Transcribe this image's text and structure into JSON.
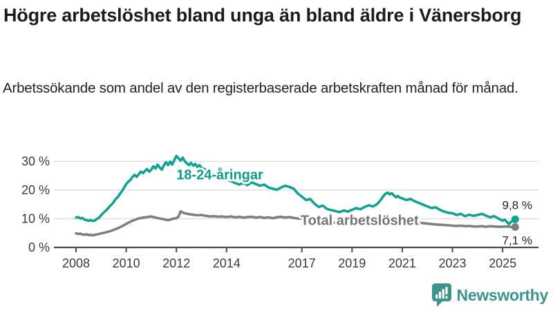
{
  "chart_data": {
    "type": "line",
    "title": "Högre arbetslöshet bland unga än bland äldre i Vänersborg",
    "subtitle": "Arbetssökande som andel av den registerbaserade arbetskraften månad för månad.",
    "xlabel": "",
    "ylabel": "",
    "xlim": [
      2007.3,
      2026.4
    ],
    "ylim": [
      0,
      33.7
    ],
    "grid": "horizontal-light",
    "legend_position": "inline-labels",
    "x_ticks": [
      2008,
      2010,
      2012,
      2014,
      2017,
      2019,
      2021,
      2023,
      2025
    ],
    "y_ticks": [
      0,
      10,
      20,
      30
    ],
    "y_tick_labels": [
      "0 %",
      "10 %",
      "20 %",
      "30 %"
    ],
    "series": [
      {
        "key": "young",
        "name": "18-24-åringar",
        "color": "#12a192",
        "label_color": "#0f9a8b",
        "label_anchor": {
          "year": 2012.0,
          "value": 25.4
        },
        "end_value": 9.8,
        "end_label": "9,8 %",
        "end_label_side": "above",
        "points": [
          [
            2008.0,
            10.4
          ],
          [
            2008.08,
            10.6
          ],
          [
            2008.17,
            10.1
          ],
          [
            2008.25,
            10.3
          ],
          [
            2008.33,
            9.7
          ],
          [
            2008.42,
            9.5
          ],
          [
            2008.5,
            9.3
          ],
          [
            2008.58,
            9.5
          ],
          [
            2008.67,
            9.2
          ],
          [
            2008.75,
            9.4
          ],
          [
            2008.83,
            9.9
          ],
          [
            2008.92,
            10.4
          ],
          [
            2009.0,
            11.2
          ],
          [
            2009.08,
            12.0
          ],
          [
            2009.17,
            12.7
          ],
          [
            2009.25,
            13.4
          ],
          [
            2009.33,
            14.2
          ],
          [
            2009.42,
            15.0
          ],
          [
            2009.5,
            15.8
          ],
          [
            2009.58,
            16.9
          ],
          [
            2009.67,
            17.6
          ],
          [
            2009.75,
            18.7
          ],
          [
            2009.83,
            19.6
          ],
          [
            2009.92,
            20.9
          ],
          [
            2010.0,
            22.1
          ],
          [
            2010.08,
            22.9
          ],
          [
            2010.17,
            23.6
          ],
          [
            2010.25,
            24.6
          ],
          [
            2010.33,
            25.3
          ],
          [
            2010.42,
            24.6
          ],
          [
            2010.5,
            25.6
          ],
          [
            2010.58,
            26.4
          ],
          [
            2010.67,
            25.9
          ],
          [
            2010.75,
            26.7
          ],
          [
            2010.83,
            27.3
          ],
          [
            2010.92,
            26.4
          ],
          [
            2011.0,
            27.1
          ],
          [
            2011.08,
            28.3
          ],
          [
            2011.17,
            27.5
          ],
          [
            2011.25,
            28.9
          ],
          [
            2011.33,
            27.9
          ],
          [
            2011.42,
            27.1
          ],
          [
            2011.5,
            28.6
          ],
          [
            2011.58,
            29.7
          ],
          [
            2011.67,
            28.7
          ],
          [
            2011.75,
            29.9
          ],
          [
            2011.83,
            28.9
          ],
          [
            2011.92,
            30.5
          ],
          [
            2012.0,
            31.9
          ],
          [
            2012.08,
            31.1
          ],
          [
            2012.17,
            30.3
          ],
          [
            2012.25,
            31.3
          ],
          [
            2012.33,
            30.1
          ],
          [
            2012.42,
            29.3
          ],
          [
            2012.5,
            28.7
          ],
          [
            2012.58,
            29.5
          ],
          [
            2012.67,
            28.5
          ],
          [
            2012.75,
            29.1
          ],
          [
            2012.83,
            28.1
          ],
          [
            2012.92,
            28.7
          ],
          [
            2013.0,
            27.7
          ],
          [
            2013.17,
            27.1
          ],
          [
            2013.33,
            26.3
          ],
          [
            2013.5,
            25.5
          ],
          [
            2013.67,
            24.9
          ],
          [
            2013.83,
            24.3
          ],
          [
            2014.0,
            23.7
          ],
          [
            2014.17,
            23.1
          ],
          [
            2014.33,
            22.5
          ],
          [
            2014.5,
            21.9
          ],
          [
            2014.67,
            22.5
          ],
          [
            2014.83,
            21.7
          ],
          [
            2015.0,
            22.7
          ],
          [
            2015.17,
            22.1
          ],
          [
            2015.33,
            21.5
          ],
          [
            2015.5,
            21.9
          ],
          [
            2015.67,
            20.9
          ],
          [
            2015.83,
            20.5
          ],
          [
            2016.0,
            20.1
          ],
          [
            2016.17,
            20.9
          ],
          [
            2016.33,
            21.5
          ],
          [
            2016.5,
            21.1
          ],
          [
            2016.67,
            20.5
          ],
          [
            2016.83,
            18.9
          ],
          [
            2017.0,
            17.7
          ],
          [
            2017.17,
            16.5
          ],
          [
            2017.33,
            16.9
          ],
          [
            2017.5,
            15.3
          ],
          [
            2017.67,
            14.1
          ],
          [
            2017.83,
            14.6
          ],
          [
            2018.0,
            13.4
          ],
          [
            2018.17,
            13.0
          ],
          [
            2018.33,
            12.7
          ],
          [
            2018.5,
            12.3
          ],
          [
            2018.67,
            12.9
          ],
          [
            2018.83,
            12.5
          ],
          [
            2019.0,
            13.1
          ],
          [
            2019.17,
            13.7
          ],
          [
            2019.33,
            13.3
          ],
          [
            2019.5,
            14.1
          ],
          [
            2019.67,
            14.7
          ],
          [
            2019.83,
            14.3
          ],
          [
            2020.0,
            15.1
          ],
          [
            2020.08,
            15.9
          ],
          [
            2020.17,
            16.9
          ],
          [
            2020.25,
            17.9
          ],
          [
            2020.33,
            18.7
          ],
          [
            2020.42,
            19.1
          ],
          [
            2020.5,
            18.5
          ],
          [
            2020.58,
            18.9
          ],
          [
            2020.67,
            18.1
          ],
          [
            2020.75,
            17.5
          ],
          [
            2020.83,
            17.9
          ],
          [
            2020.92,
            17.3
          ],
          [
            2021.0,
            17.1
          ],
          [
            2021.17,
            16.5
          ],
          [
            2021.33,
            16.9
          ],
          [
            2021.5,
            16.1
          ],
          [
            2021.67,
            15.5
          ],
          [
            2021.83,
            14.9
          ],
          [
            2022.0,
            14.3
          ],
          [
            2022.17,
            13.7
          ],
          [
            2022.33,
            14.0
          ],
          [
            2022.5,
            13.1
          ],
          [
            2022.67,
            12.5
          ],
          [
            2022.83,
            12.1
          ],
          [
            2023.0,
            11.9
          ],
          [
            2023.17,
            11.3
          ],
          [
            2023.33,
            11.7
          ],
          [
            2023.5,
            10.9
          ],
          [
            2023.67,
            11.4
          ],
          [
            2023.83,
            11.0
          ],
          [
            2024.0,
            11.3
          ],
          [
            2024.17,
            11.7
          ],
          [
            2024.33,
            11.1
          ],
          [
            2024.5,
            10.5
          ],
          [
            2024.67,
            10.9
          ],
          [
            2024.83,
            10.1
          ],
          [
            2025.0,
            9.3
          ],
          [
            2025.08,
            9.7
          ],
          [
            2025.17,
            8.9
          ],
          [
            2025.25,
            8.1
          ],
          [
            2025.33,
            8.9
          ],
          [
            2025.42,
            9.3
          ],
          [
            2025.5,
            9.8
          ]
        ]
      },
      {
        "key": "total",
        "name": "Total arbetslöshet",
        "color": "#7f7f7f",
        "label_color": "#757575",
        "label_anchor": {
          "year": 2016.95,
          "value": 9.5
        },
        "end_value": 7.1,
        "end_label": "7,1 %",
        "end_label_side": "below",
        "points": [
          [
            2008.0,
            4.9
          ],
          [
            2008.08,
            4.7
          ],
          [
            2008.17,
            4.8
          ],
          [
            2008.25,
            4.5
          ],
          [
            2008.33,
            4.4
          ],
          [
            2008.42,
            4.6
          ],
          [
            2008.5,
            4.3
          ],
          [
            2008.58,
            4.4
          ],
          [
            2008.67,
            4.2
          ],
          [
            2008.75,
            4.4
          ],
          [
            2008.83,
            4.5
          ],
          [
            2008.92,
            4.7
          ],
          [
            2009.0,
            4.9
          ],
          [
            2009.17,
            5.2
          ],
          [
            2009.33,
            5.6
          ],
          [
            2009.5,
            6.1
          ],
          [
            2009.67,
            6.7
          ],
          [
            2009.83,
            7.4
          ],
          [
            2010.0,
            8.2
          ],
          [
            2010.17,
            9.0
          ],
          [
            2010.33,
            9.6
          ],
          [
            2010.5,
            10.1
          ],
          [
            2010.67,
            10.4
          ],
          [
            2010.83,
            10.6
          ],
          [
            2011.0,
            10.8
          ],
          [
            2011.17,
            10.4
          ],
          [
            2011.33,
            10.1
          ],
          [
            2011.5,
            9.8
          ],
          [
            2011.67,
            9.5
          ],
          [
            2011.83,
            9.9
          ],
          [
            2012.0,
            10.2
          ],
          [
            2012.08,
            10.7
          ],
          [
            2012.17,
            12.6
          ],
          [
            2012.25,
            12.2
          ],
          [
            2012.33,
            11.9
          ],
          [
            2012.5,
            11.6
          ],
          [
            2012.67,
            11.4
          ],
          [
            2012.83,
            11.2
          ],
          [
            2013.0,
            11.3
          ],
          [
            2013.17,
            11.0
          ],
          [
            2013.33,
            10.8
          ],
          [
            2013.5,
            10.9
          ],
          [
            2013.67,
            10.7
          ],
          [
            2013.83,
            10.8
          ],
          [
            2014.0,
            10.6
          ],
          [
            2014.17,
            10.8
          ],
          [
            2014.33,
            10.5
          ],
          [
            2014.5,
            10.7
          ],
          [
            2014.67,
            10.4
          ],
          [
            2014.83,
            10.6
          ],
          [
            2015.0,
            10.7
          ],
          [
            2015.17,
            10.4
          ],
          [
            2015.33,
            10.6
          ],
          [
            2015.5,
            10.3
          ],
          [
            2015.67,
            10.5
          ],
          [
            2015.83,
            10.2
          ],
          [
            2016.0,
            10.5
          ],
          [
            2016.17,
            10.7
          ],
          [
            2016.33,
            10.4
          ],
          [
            2016.5,
            10.6
          ],
          [
            2016.67,
            10.3
          ],
          [
            2016.83,
            10.1
          ],
          [
            2017.0,
            10.0
          ],
          [
            2017.25,
            9.8
          ],
          [
            2017.5,
            9.5
          ],
          [
            2017.75,
            9.2
          ],
          [
            2018.0,
            8.9
          ],
          [
            2018.33,
            8.6
          ],
          [
            2018.67,
            8.4
          ],
          [
            2019.0,
            8.3
          ],
          [
            2019.33,
            8.2
          ],
          [
            2019.67,
            8.4
          ],
          [
            2020.0,
            8.6
          ],
          [
            2020.25,
            9.4
          ],
          [
            2020.5,
            9.7
          ],
          [
            2020.75,
            9.5
          ],
          [
            2021.0,
            9.3
          ],
          [
            2021.33,
            9.0
          ],
          [
            2021.67,
            8.6
          ],
          [
            2022.0,
            8.3
          ],
          [
            2022.33,
            8.0
          ],
          [
            2022.67,
            7.8
          ],
          [
            2023.0,
            7.6
          ],
          [
            2023.17,
            7.5
          ],
          [
            2023.33,
            7.6
          ],
          [
            2023.5,
            7.4
          ],
          [
            2023.67,
            7.5
          ],
          [
            2023.83,
            7.3
          ],
          [
            2024.0,
            7.3
          ],
          [
            2024.17,
            7.4
          ],
          [
            2024.33,
            7.2
          ],
          [
            2024.5,
            7.4
          ],
          [
            2024.67,
            7.3
          ],
          [
            2024.83,
            7.2
          ],
          [
            2025.0,
            7.2
          ],
          [
            2025.17,
            7.3
          ],
          [
            2025.33,
            7.1
          ],
          [
            2025.42,
            7.2
          ],
          [
            2025.5,
            7.1
          ]
        ]
      }
    ]
  },
  "footer": {
    "brand": "Newsworthy",
    "logo_icon": "bar-chart-speech-pin-icon"
  },
  "colors": {
    "background": "#ffffff",
    "title_text": "#1c1c1c",
    "body_text": "#222222",
    "axis": "#4a4a4a",
    "tick_text": "#3a3a3a",
    "grid": "#d9d9d9",
    "young_series": "#12a192",
    "total_series": "#7f7f7f",
    "value_label_text": "#222222",
    "brand_teal": "#3b938b",
    "logo_teal": "#3e948c"
  }
}
